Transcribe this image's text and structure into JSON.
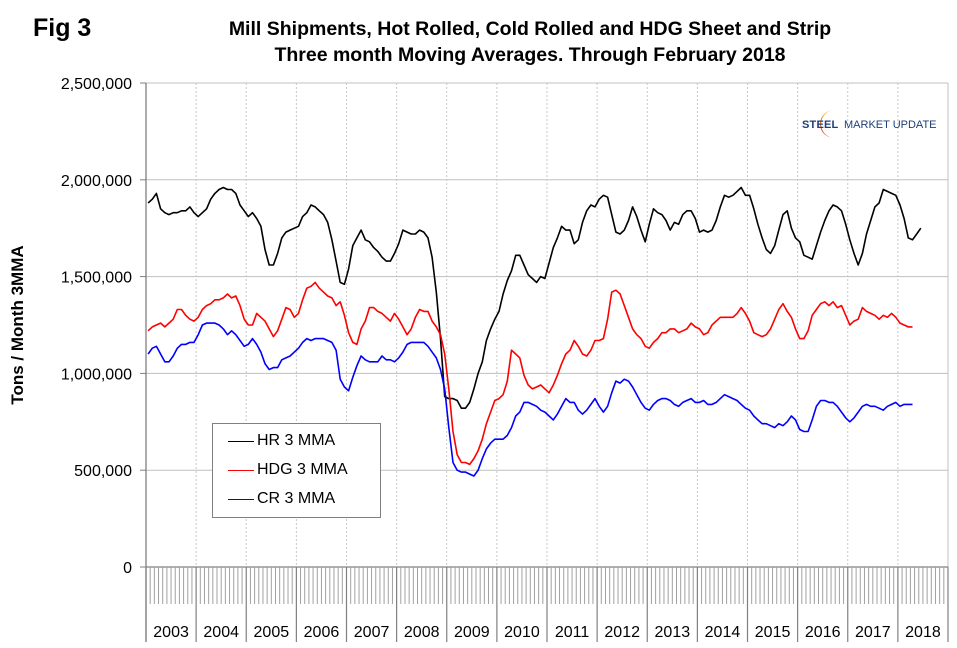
{
  "figure": {
    "label": "Fig 3",
    "logo_text_bold": "STEEL",
    "logo_text_regular": "MARKET UPDATE"
  },
  "chart_data": {
    "type": "line",
    "title": "Mill Shipments, Hot Rolled, Cold Rolled and HDG Sheet and Strip",
    "subtitle": "Three month Moving Averages. Through February 2018",
    "xlabel": "",
    "ylabel": "Tons / Month 3MMA",
    "ylim": [
      0,
      2500000
    ],
    "yticks": [
      0,
      500000,
      1000000,
      1500000,
      2000000,
      2500000
    ],
    "ytick_labels": [
      "0",
      "500,000",
      "1,000,000",
      "1,500,000",
      "2,000,000",
      "2,500,000"
    ],
    "x_start": "2003-01",
    "x_end": "2018-02",
    "x_frequency": "monthly",
    "x_range_years": [
      2003,
      2018
    ],
    "xtick_labels": [
      "2003",
      "2004",
      "2005",
      "2006",
      "2007",
      "2008",
      "2009",
      "2010",
      "2011",
      "2012",
      "2013",
      "2014",
      "2015",
      "2016",
      "2017",
      "2018"
    ],
    "grid": {
      "horizontal": true,
      "vertical": "dotted at year boundaries"
    },
    "legend": {
      "position": "bottom-left inside plot",
      "entries": [
        "HR 3 MMA",
        "HDG 3 MMA",
        "CR 3 MMA"
      ]
    },
    "series": [
      {
        "name": "HR 3 MMA",
        "color": "#000000",
        "values": [
          1880000,
          1900000,
          1930000,
          1850000,
          1830000,
          1820000,
          1830000,
          1830000,
          1840000,
          1840000,
          1860000,
          1830000,
          1810000,
          1830000,
          1850000,
          1900000,
          1930000,
          1950000,
          1960000,
          1950000,
          1950000,
          1930000,
          1870000,
          1840000,
          1810000,
          1830000,
          1800000,
          1760000,
          1640000,
          1560000,
          1560000,
          1620000,
          1700000,
          1730000,
          1740000,
          1750000,
          1760000,
          1810000,
          1830000,
          1870000,
          1860000,
          1840000,
          1820000,
          1780000,
          1690000,
          1580000,
          1470000,
          1460000,
          1540000,
          1660000,
          1700000,
          1740000,
          1690000,
          1680000,
          1650000,
          1630000,
          1600000,
          1580000,
          1580000,
          1620000,
          1670000,
          1740000,
          1730000,
          1720000,
          1720000,
          1740000,
          1730000,
          1700000,
          1600000,
          1420000,
          1180000,
          880000,
          870000,
          870000,
          860000,
          820000,
          820000,
          850000,
          920000,
          1000000,
          1060000,
          1170000,
          1230000,
          1280000,
          1320000,
          1410000,
          1480000,
          1530000,
          1610000,
          1610000,
          1560000,
          1510000,
          1490000,
          1470000,
          1500000,
          1490000,
          1570000,
          1650000,
          1700000,
          1760000,
          1740000,
          1740000,
          1670000,
          1690000,
          1780000,
          1840000,
          1870000,
          1860000,
          1900000,
          1920000,
          1910000,
          1820000,
          1730000,
          1720000,
          1740000,
          1790000,
          1860000,
          1810000,
          1740000,
          1680000,
          1770000,
          1850000,
          1830000,
          1820000,
          1790000,
          1740000,
          1780000,
          1770000,
          1820000,
          1840000,
          1840000,
          1800000,
          1730000,
          1740000,
          1730000,
          1740000,
          1790000,
          1860000,
          1920000,
          1910000,
          1920000,
          1940000,
          1960000,
          1920000,
          1920000,
          1850000,
          1770000,
          1700000,
          1640000,
          1620000,
          1660000,
          1740000,
          1820000,
          1840000,
          1750000,
          1700000,
          1680000,
          1610000,
          1600000,
          1590000,
          1660000,
          1730000,
          1790000,
          1840000,
          1870000,
          1860000,
          1840000,
          1770000,
          1690000,
          1620000,
          1560000,
          1620000,
          1720000,
          1790000,
          1860000,
          1880000,
          1950000,
          1940000,
          1930000,
          1920000,
          1870000,
          1800000,
          1700000,
          1690000,
          1720000,
          1750000
        ]
      },
      {
        "name": "HDG 3 MMA",
        "color": "#ff0000",
        "values": [
          1220000,
          1240000,
          1250000,
          1260000,
          1240000,
          1260000,
          1280000,
          1330000,
          1330000,
          1300000,
          1280000,
          1270000,
          1290000,
          1330000,
          1350000,
          1360000,
          1380000,
          1380000,
          1390000,
          1410000,
          1390000,
          1400000,
          1350000,
          1280000,
          1250000,
          1250000,
          1310000,
          1290000,
          1270000,
          1230000,
          1190000,
          1220000,
          1280000,
          1340000,
          1330000,
          1290000,
          1310000,
          1380000,
          1440000,
          1450000,
          1470000,
          1440000,
          1420000,
          1400000,
          1390000,
          1350000,
          1370000,
          1300000,
          1210000,
          1160000,
          1150000,
          1230000,
          1270000,
          1340000,
          1340000,
          1320000,
          1310000,
          1290000,
          1270000,
          1310000,
          1280000,
          1240000,
          1200000,
          1230000,
          1290000,
          1330000,
          1320000,
          1320000,
          1270000,
          1240000,
          1200000,
          1100000,
          920000,
          700000,
          580000,
          540000,
          540000,
          530000,
          560000,
          600000,
          660000,
          740000,
          800000,
          860000,
          870000,
          890000,
          960000,
          1120000,
          1100000,
          1080000,
          990000,
          940000,
          920000,
          930000,
          940000,
          920000,
          900000,
          940000,
          990000,
          1050000,
          1100000,
          1120000,
          1170000,
          1140000,
          1100000,
          1090000,
          1120000,
          1170000,
          1170000,
          1180000,
          1280000,
          1420000,
          1430000,
          1410000,
          1350000,
          1290000,
          1230000,
          1200000,
          1180000,
          1140000,
          1130000,
          1160000,
          1180000,
          1210000,
          1210000,
          1230000,
          1230000,
          1210000,
          1220000,
          1230000,
          1260000,
          1240000,
          1230000,
          1200000,
          1210000,
          1250000,
          1270000,
          1290000,
          1290000,
          1290000,
          1290000,
          1310000,
          1340000,
          1310000,
          1270000,
          1210000,
          1200000,
          1190000,
          1200000,
          1230000,
          1280000,
          1330000,
          1360000,
          1320000,
          1290000,
          1230000,
          1180000,
          1180000,
          1220000,
          1300000,
          1330000,
          1360000,
          1370000,
          1350000,
          1370000,
          1340000,
          1350000,
          1300000,
          1250000,
          1270000,
          1280000,
          1340000,
          1320000,
          1310000,
          1300000,
          1280000,
          1300000,
          1290000,
          1310000,
          1290000,
          1260000,
          1250000,
          1240000,
          1240000
        ]
      },
      {
        "name": "CR 3 MMA",
        "color": "#0000ff",
        "values": [
          1100000,
          1130000,
          1140000,
          1100000,
          1060000,
          1060000,
          1090000,
          1130000,
          1150000,
          1150000,
          1160000,
          1160000,
          1200000,
          1250000,
          1260000,
          1260000,
          1260000,
          1250000,
          1230000,
          1200000,
          1220000,
          1200000,
          1170000,
          1140000,
          1150000,
          1180000,
          1150000,
          1110000,
          1050000,
          1020000,
          1030000,
          1030000,
          1070000,
          1080000,
          1090000,
          1110000,
          1130000,
          1160000,
          1180000,
          1170000,
          1180000,
          1180000,
          1180000,
          1170000,
          1160000,
          1120000,
          970000,
          930000,
          910000,
          980000,
          1040000,
          1090000,
          1070000,
          1060000,
          1060000,
          1060000,
          1090000,
          1070000,
          1070000,
          1060000,
          1080000,
          1110000,
          1150000,
          1160000,
          1160000,
          1160000,
          1160000,
          1140000,
          1110000,
          1080000,
          1020000,
          920000,
          720000,
          540000,
          500000,
          490000,
          490000,
          480000,
          470000,
          500000,
          560000,
          610000,
          640000,
          660000,
          660000,
          660000,
          680000,
          720000,
          780000,
          800000,
          850000,
          850000,
          840000,
          830000,
          810000,
          800000,
          780000,
          760000,
          790000,
          830000,
          870000,
          850000,
          850000,
          810000,
          790000,
          810000,
          840000,
          870000,
          830000,
          800000,
          830000,
          900000,
          960000,
          950000,
          970000,
          960000,
          930000,
          890000,
          850000,
          820000,
          810000,
          840000,
          860000,
          870000,
          870000,
          860000,
          840000,
          830000,
          850000,
          860000,
          870000,
          850000,
          850000,
          860000,
          840000,
          840000,
          850000,
          870000,
          890000,
          880000,
          870000,
          860000,
          840000,
          820000,
          810000,
          780000,
          760000,
          740000,
          740000,
          730000,
          720000,
          740000,
          730000,
          750000,
          780000,
          760000,
          710000,
          700000,
          700000,
          760000,
          830000,
          860000,
          860000,
          850000,
          850000,
          830000,
          800000,
          770000,
          750000,
          770000,
          800000,
          830000,
          840000,
          830000,
          830000,
          820000,
          810000,
          830000,
          840000,
          850000,
          830000,
          840000,
          840000,
          840000
        ]
      }
    ]
  }
}
